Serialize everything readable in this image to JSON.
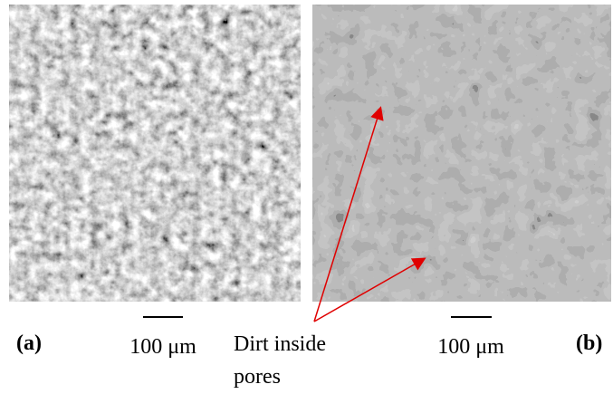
{
  "panels": [
    {
      "label": "(a)",
      "scale_bar": "100 μm"
    },
    {
      "label": "(b)",
      "scale_bar": "100 μm"
    }
  ],
  "annotation": {
    "lines": [
      "Dirt inside",
      "pores"
    ]
  }
}
